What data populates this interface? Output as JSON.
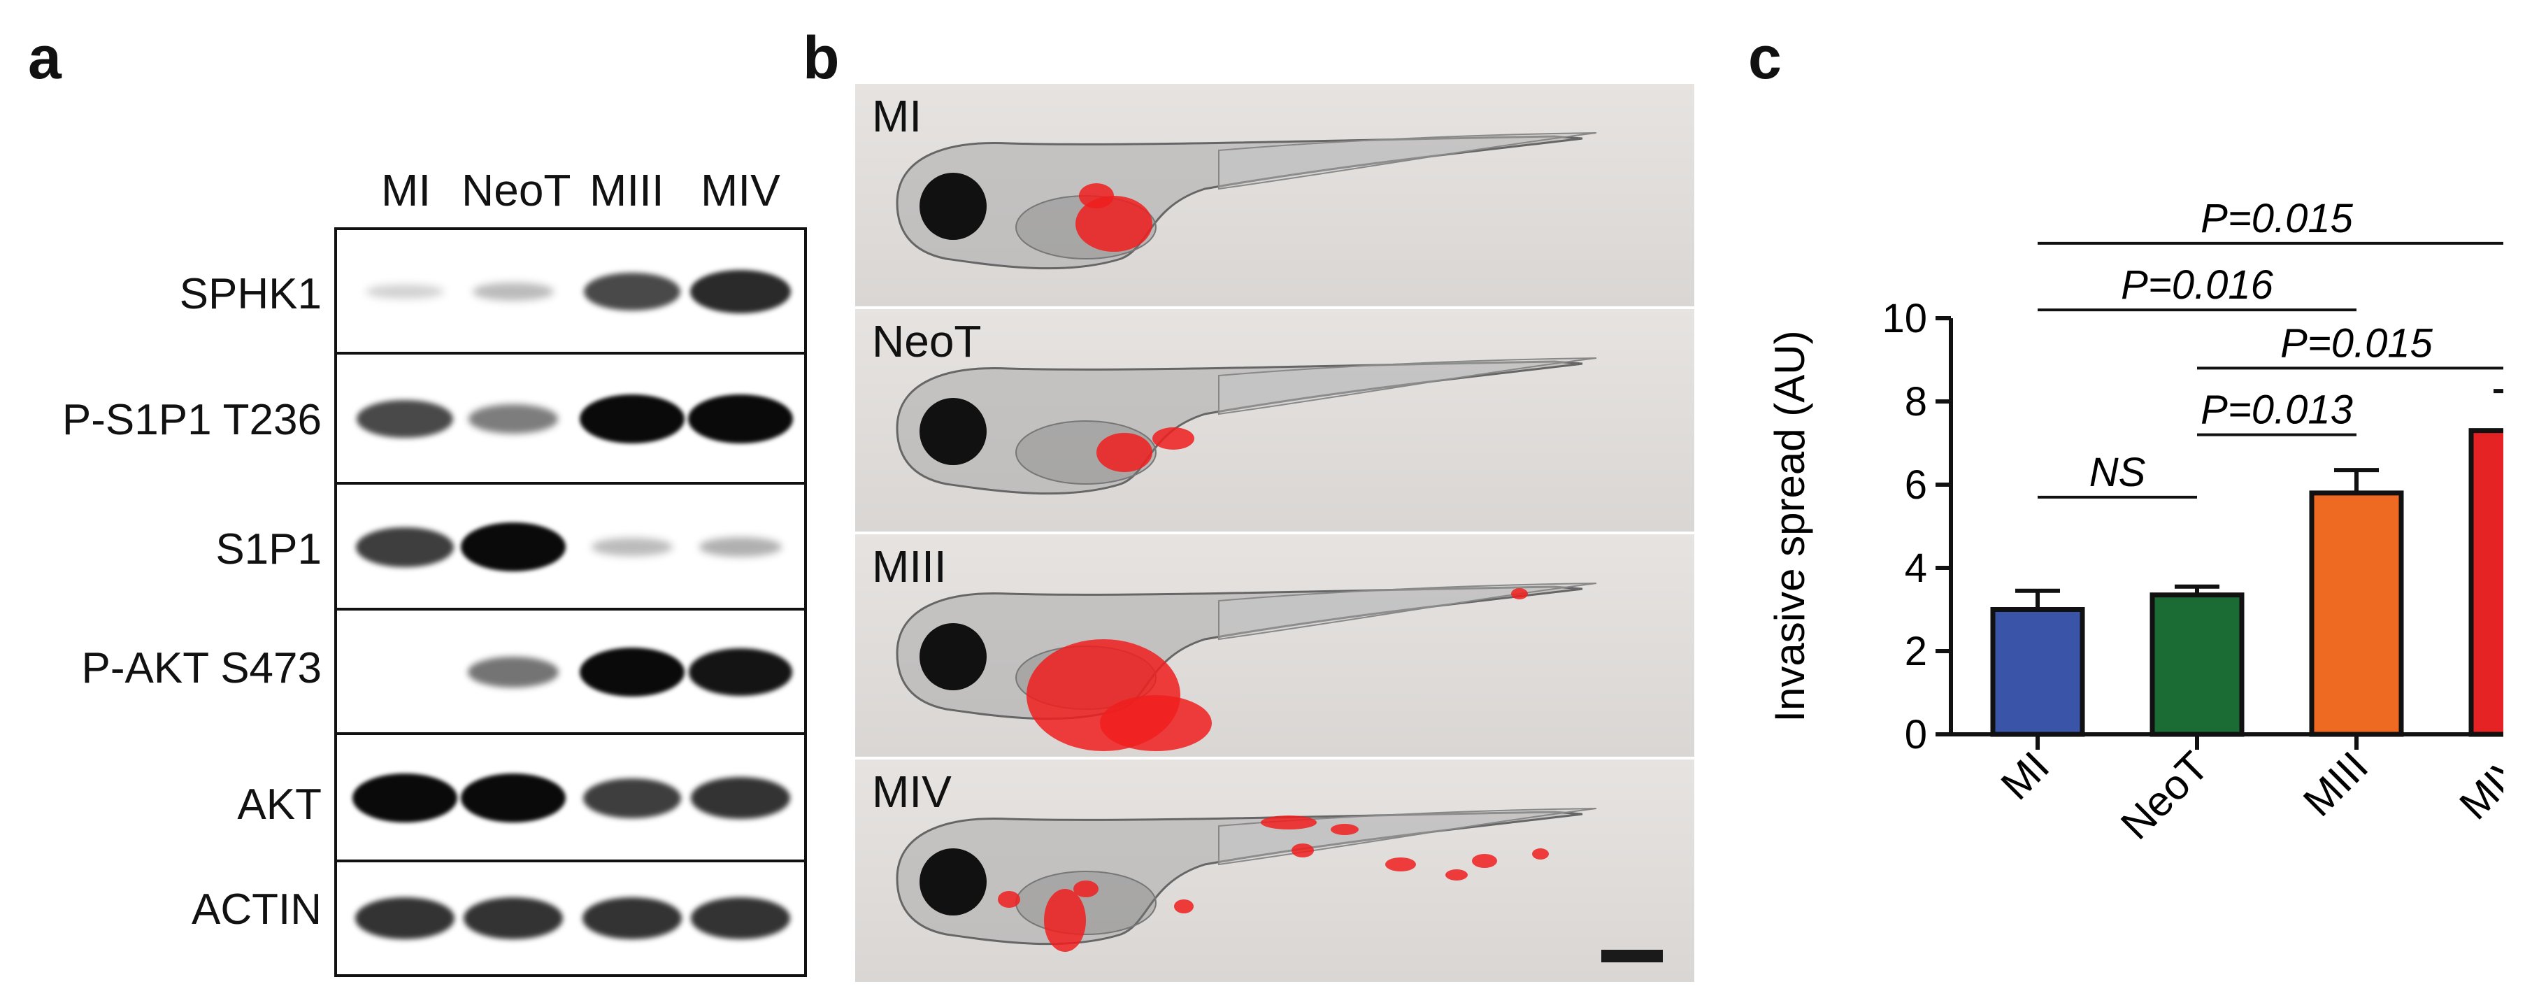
{
  "figure": {
    "panel_letters": [
      "a",
      "b",
      "c"
    ]
  },
  "panel_a": {
    "lanes": [
      "MI",
      "NeoT",
      "MIII",
      "MIV"
    ],
    "rows": [
      {
        "label": "SPHK1",
        "band_intensity": [
          0.05,
          0.15,
          0.7,
          0.85
        ]
      },
      {
        "label": "P-S1P1 T236",
        "band_intensity": [
          0.7,
          0.45,
          1.0,
          1.0
        ]
      },
      {
        "label": "S1P1",
        "band_intensity": [
          0.75,
          1.0,
          0.15,
          0.2
        ]
      },
      {
        "label": "P-AKT S473",
        "band_intensity": [
          0.0,
          0.5,
          1.0,
          0.95
        ]
      },
      {
        "label": "AKT",
        "band_intensity": [
          1.0,
          1.0,
          0.75,
          0.8
        ]
      },
      {
        "label": "ACTIN",
        "band_intensity": [
          0.8,
          0.8,
          0.8,
          0.8
        ]
      }
    ]
  },
  "panel_b": {
    "images": [
      {
        "label": "MI"
      },
      {
        "label": "NeoT"
      },
      {
        "label": "MIII"
      },
      {
        "label": "MIV"
      }
    ],
    "scale_bar": true
  },
  "chart_data": {
    "type": "bar",
    "categories": [
      "MI",
      "NeoT",
      "MIII",
      "MIV"
    ],
    "values": [
      3.0,
      3.35,
      5.8,
      7.3
    ],
    "errors": [
      0.45,
      0.2,
      0.55,
      0.95
    ],
    "colors": [
      "#3a55a8",
      "#1b6b35",
      "#ee6a22",
      "#e52325"
    ],
    "ylabel": "Invasive spread (AU)",
    "xlabel": "",
    "ylim": [
      0,
      10
    ],
    "yticks": [
      "0",
      "2",
      "4",
      "6",
      "8",
      "10"
    ],
    "grid": false,
    "significance": [
      {
        "label": "NS",
        "from": 0,
        "to": 1,
        "level": 5.7
      },
      {
        "label": "P=0.013",
        "from": 1,
        "to": 2,
        "level": 7.2
      },
      {
        "label": "P=0.015",
        "from": 1,
        "to": 3,
        "level": 8.8
      },
      {
        "label": "P=0.016",
        "from": 0,
        "to": 2,
        "level": 10.2
      },
      {
        "label": "P=0.015",
        "from": 0,
        "to": 3,
        "level": 11.8
      }
    ]
  }
}
